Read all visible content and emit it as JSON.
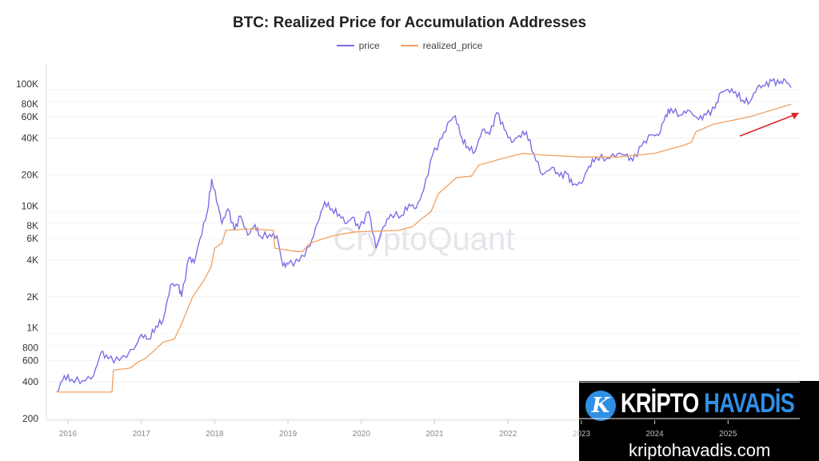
{
  "chart_data": {
    "type": "line",
    "title": "BTC: Realized Price for Accumulation Addresses",
    "y_scale": "log",
    "ylim": [
      200,
      130000
    ],
    "xlim": [
      2015.7,
      2026.1
    ],
    "grid": true,
    "legend_placement": "top-center",
    "y_ticks": [
      {
        "v": 200,
        "label": "200"
      },
      {
        "v": 400,
        "label": "400"
      },
      {
        "v": 600,
        "label": "600"
      },
      {
        "v": 800,
        "label": "800"
      },
      {
        "v": 1000,
        "label": "1K"
      },
      {
        "v": 2000,
        "label": "2K"
      },
      {
        "v": 4000,
        "label": "4K"
      },
      {
        "v": 6000,
        "label": "6K"
      },
      {
        "v": 8000,
        "label": "8K"
      },
      {
        "v": 10000,
        "label": "10K"
      },
      {
        "v": 20000,
        "label": "20K"
      },
      {
        "v": 40000,
        "label": "40K"
      },
      {
        "v": 60000,
        "label": "60K"
      },
      {
        "v": 80000,
        "label": "80K"
      },
      {
        "v": 100000,
        "label": "100K"
      }
    ],
    "x_ticks": [
      {
        "v": 2016,
        "label": "2016"
      },
      {
        "v": 2017,
        "label": "2017"
      },
      {
        "v": 2018,
        "label": "2018"
      },
      {
        "v": 2019,
        "label": "2019"
      },
      {
        "v": 2020,
        "label": "2020"
      },
      {
        "v": 2021,
        "label": "2021"
      },
      {
        "v": 2022,
        "label": "2022"
      },
      {
        "v": 2023,
        "label": "2023"
      },
      {
        "v": 2024,
        "label": "2024"
      },
      {
        "v": 2025,
        "label": "2025"
      }
    ],
    "series": [
      {
        "name": "price",
        "color": "#7b6fe8",
        "points": [
          [
            2015.85,
            330
          ],
          [
            2015.95,
            450
          ],
          [
            2016.05,
            420
          ],
          [
            2016.2,
            410
          ],
          [
            2016.35,
            450
          ],
          [
            2016.45,
            700
          ],
          [
            2016.55,
            620
          ],
          [
            2016.7,
            600
          ],
          [
            2016.9,
            740
          ],
          [
            2017.0,
            980
          ],
          [
            2017.1,
            900
          ],
          [
            2017.2,
            1150
          ],
          [
            2017.3,
            1300
          ],
          [
            2017.4,
            2500
          ],
          [
            2017.5,
            2500
          ],
          [
            2017.55,
            2000
          ],
          [
            2017.65,
            4200
          ],
          [
            2017.72,
            3800
          ],
          [
            2017.8,
            6000
          ],
          [
            2017.9,
            10000
          ],
          [
            2017.96,
            18500
          ],
          [
            2018.05,
            11000
          ],
          [
            2018.1,
            8000
          ],
          [
            2018.18,
            10500
          ],
          [
            2018.27,
            7000
          ],
          [
            2018.35,
            9200
          ],
          [
            2018.45,
            6400
          ],
          [
            2018.55,
            7800
          ],
          [
            2018.62,
            6300
          ],
          [
            2018.75,
            6500
          ],
          [
            2018.85,
            6300
          ],
          [
            2018.93,
            3600
          ],
          [
            2019.0,
            3700
          ],
          [
            2019.15,
            3900
          ],
          [
            2019.3,
            5200
          ],
          [
            2019.4,
            8000
          ],
          [
            2019.5,
            12000
          ],
          [
            2019.6,
            10500
          ],
          [
            2019.7,
            9500
          ],
          [
            2019.8,
            8000
          ],
          [
            2019.88,
            9000
          ],
          [
            2019.97,
            7200
          ],
          [
            2020.1,
            10000
          ],
          [
            2020.2,
            5000
          ],
          [
            2020.3,
            7500
          ],
          [
            2020.4,
            9500
          ],
          [
            2020.55,
            9300
          ],
          [
            2020.65,
            11500
          ],
          [
            2020.75,
            10700
          ],
          [
            2020.85,
            15000
          ],
          [
            2020.97,
            29000
          ],
          [
            2021.1,
            40000
          ],
          [
            2021.2,
            55000
          ],
          [
            2021.28,
            61000
          ],
          [
            2021.37,
            40000
          ],
          [
            2021.45,
            34000
          ],
          [
            2021.55,
            31000
          ],
          [
            2021.65,
            47000
          ],
          [
            2021.75,
            43000
          ],
          [
            2021.85,
            65000
          ],
          [
            2021.95,
            47000
          ],
          [
            2022.05,
            37000
          ],
          [
            2022.15,
            42000
          ],
          [
            2022.25,
            45000
          ],
          [
            2022.35,
            30000
          ],
          [
            2022.47,
            20000
          ],
          [
            2022.6,
            23000
          ],
          [
            2022.7,
            19500
          ],
          [
            2022.8,
            20500
          ],
          [
            2022.88,
            16500
          ],
          [
            2023.0,
            17000
          ],
          [
            2023.1,
            23500
          ],
          [
            2023.2,
            28000
          ],
          [
            2023.35,
            27500
          ],
          [
            2023.5,
            30000
          ],
          [
            2023.6,
            29000
          ],
          [
            2023.7,
            26000
          ],
          [
            2023.82,
            34500
          ],
          [
            2023.95,
            42500
          ],
          [
            2024.05,
            42000
          ],
          [
            2024.15,
            62000
          ],
          [
            2024.22,
            70000
          ],
          [
            2024.35,
            62000
          ],
          [
            2024.45,
            68000
          ],
          [
            2024.6,
            57000
          ],
          [
            2024.7,
            62000
          ],
          [
            2024.82,
            70000
          ],
          [
            2024.9,
            95000
          ],
          [
            2025.0,
            100000
          ],
          [
            2025.1,
            96000
          ],
          [
            2025.2,
            82000
          ],
          [
            2025.3,
            80000
          ],
          [
            2025.4,
            105000
          ],
          [
            2025.5,
            107000
          ],
          [
            2025.6,
            118000
          ],
          [
            2025.7,
            112000
          ],
          [
            2025.78,
            120000
          ],
          [
            2025.86,
            104000
          ]
        ]
      },
      {
        "name": "realized_price",
        "color": "#f0a060",
        "points": [
          [
            2015.85,
            330
          ],
          [
            2016.6,
            330
          ],
          [
            2016.62,
            500
          ],
          [
            2016.85,
            520
          ],
          [
            2016.95,
            580
          ],
          [
            2017.05,
            620
          ],
          [
            2017.15,
            700
          ],
          [
            2017.3,
            850
          ],
          [
            2017.45,
            900
          ],
          [
            2017.55,
            1200
          ],
          [
            2017.7,
            2000
          ],
          [
            2017.85,
            2700
          ],
          [
            2017.95,
            3500
          ],
          [
            2018.0,
            5000
          ],
          [
            2018.1,
            5500
          ],
          [
            2018.15,
            7000
          ],
          [
            2018.5,
            7200
          ],
          [
            2018.8,
            7000
          ],
          [
            2018.82,
            5000
          ],
          [
            2019.1,
            4700
          ],
          [
            2019.2,
            4700
          ],
          [
            2019.3,
            5500
          ],
          [
            2019.6,
            6300
          ],
          [
            2019.9,
            6800
          ],
          [
            2020.5,
            7000
          ],
          [
            2020.7,
            7500
          ],
          [
            2020.8,
            8500
          ],
          [
            2020.95,
            10000
          ],
          [
            2021.05,
            14000
          ],
          [
            2021.3,
            19000
          ],
          [
            2021.5,
            19500
          ],
          [
            2021.6,
            24000
          ],
          [
            2021.9,
            27000
          ],
          [
            2022.2,
            30000
          ],
          [
            2022.5,
            29000
          ],
          [
            2023.0,
            28000
          ],
          [
            2023.5,
            28000
          ],
          [
            2024.0,
            30000
          ],
          [
            2024.4,
            35000
          ],
          [
            2024.5,
            37000
          ],
          [
            2024.56,
            45000
          ],
          [
            2024.8,
            52000
          ],
          [
            2025.3,
            60000
          ],
          [
            2025.86,
            76000
          ]
        ]
      }
    ],
    "annotations": [
      {
        "type": "arrow",
        "color": "#e0242a",
        "direction": "up-right"
      }
    ],
    "watermark": "CryptoQuant"
  },
  "logo": {
    "word1": "KRİPTO",
    "word2": "HAVADİS",
    "url": "kriptohavadis.com",
    "badge": "K"
  }
}
